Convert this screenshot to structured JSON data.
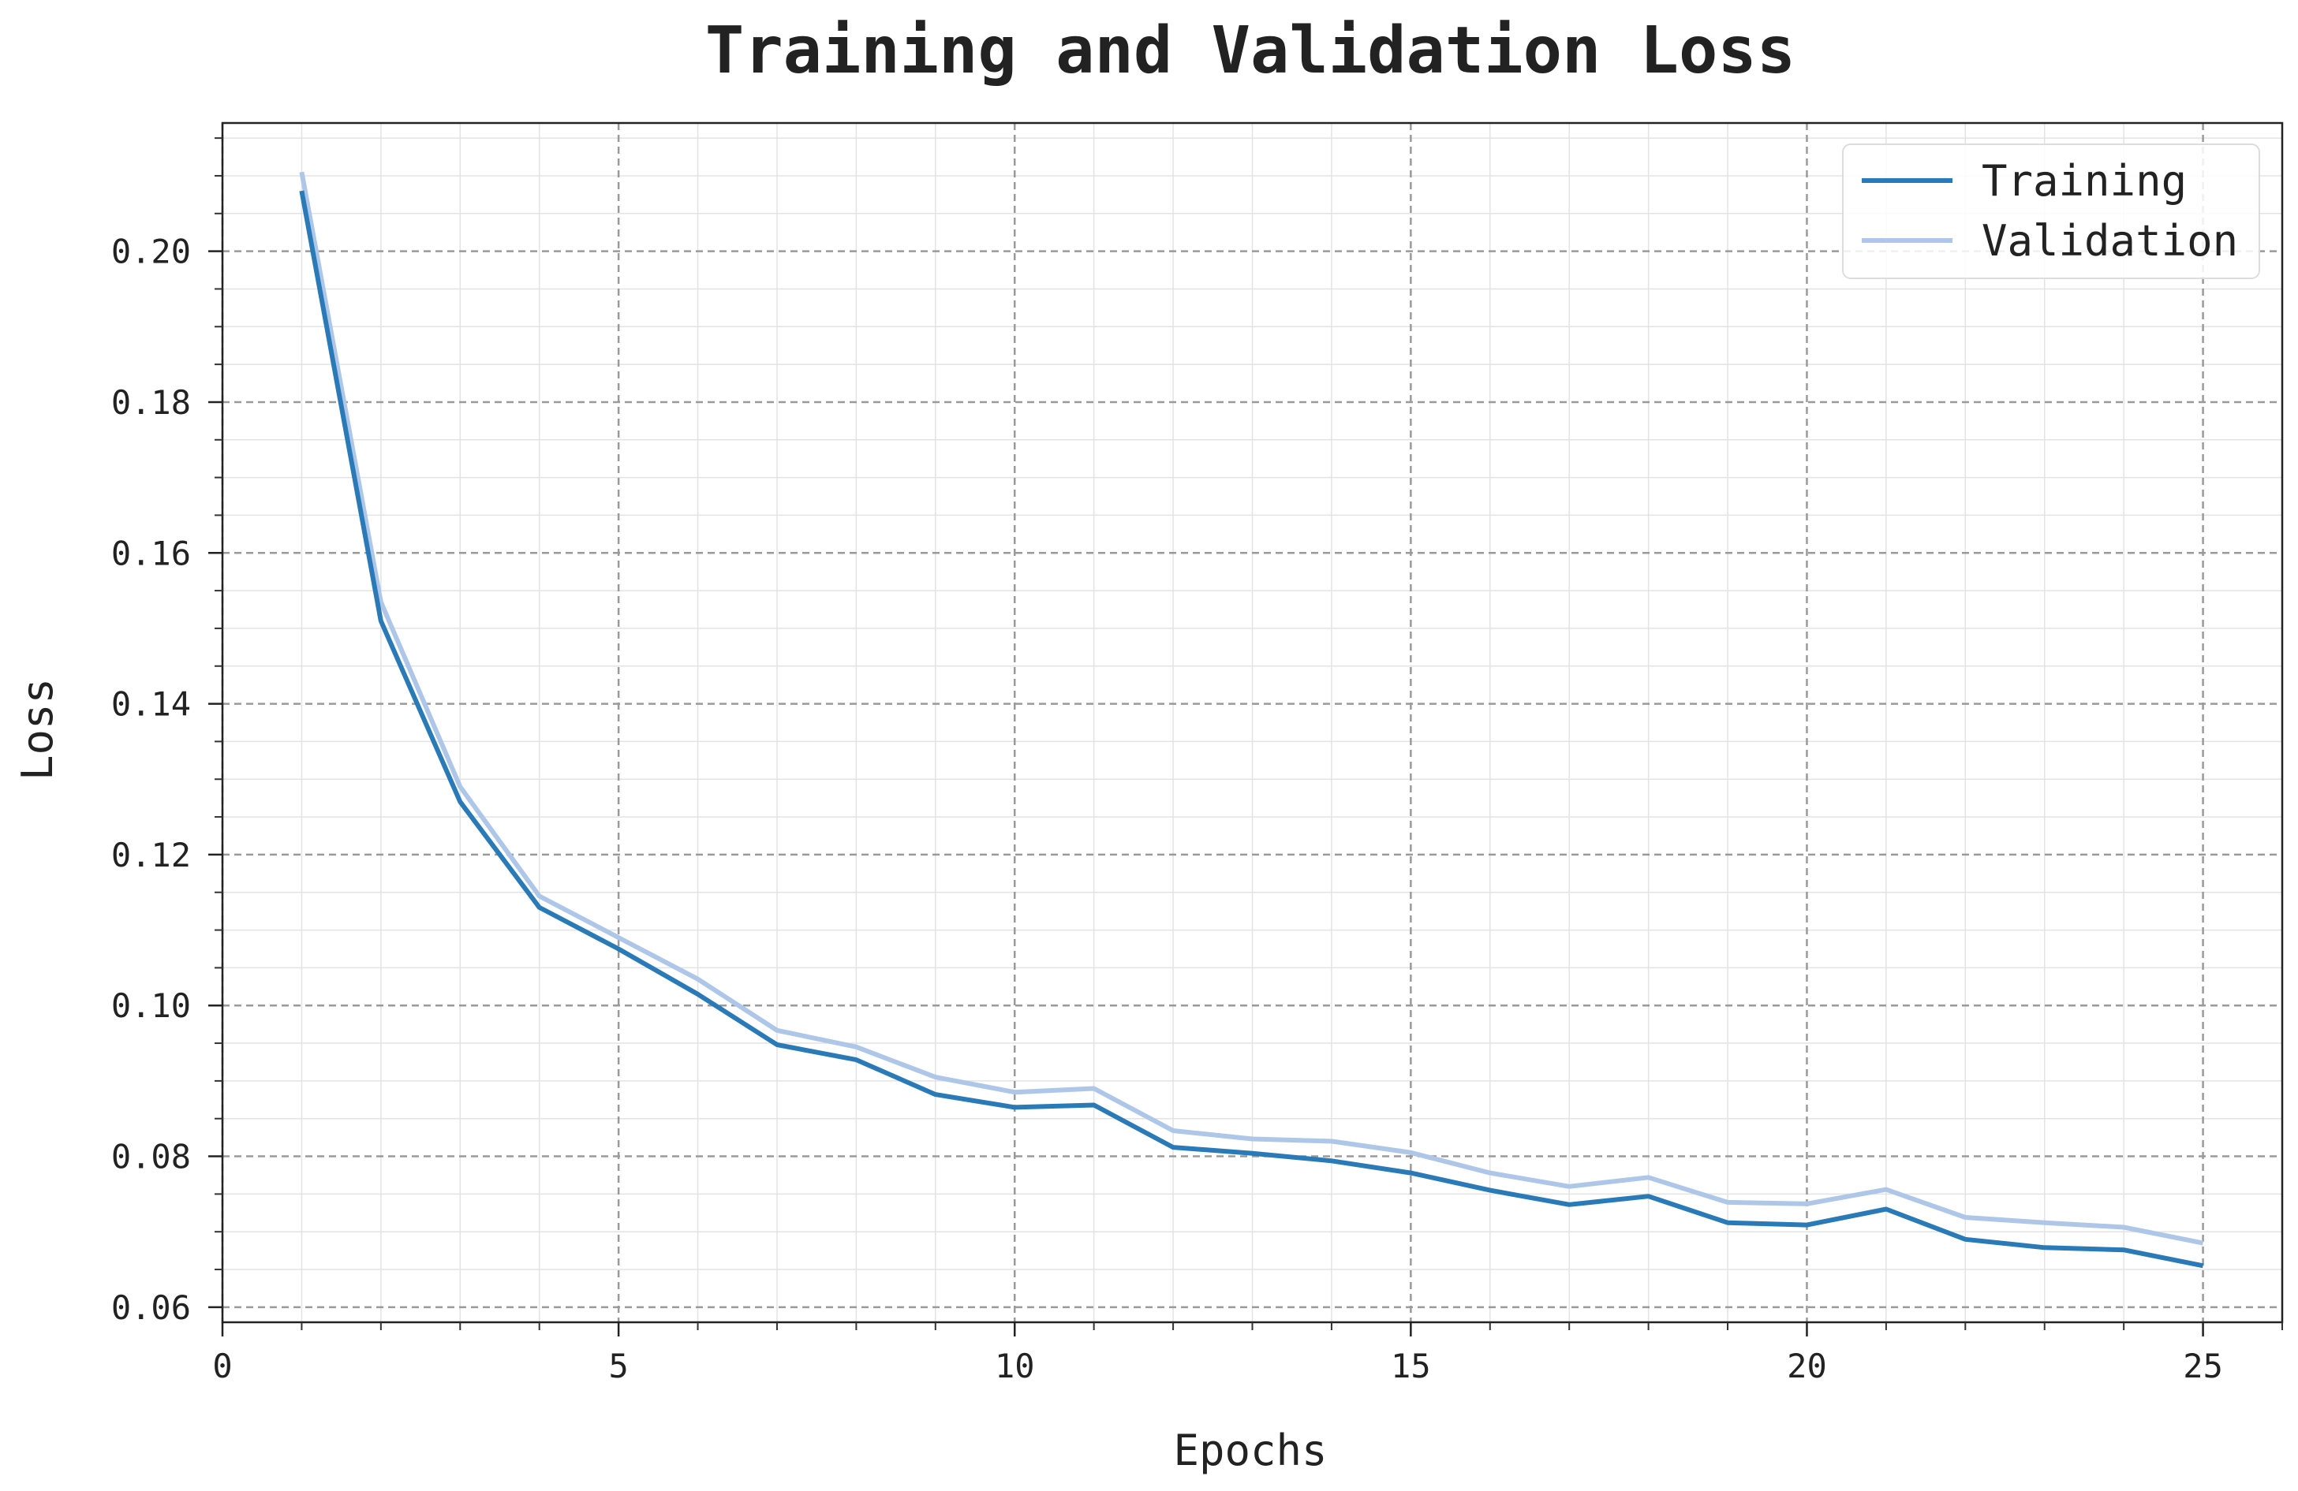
{
  "chart_data": {
    "type": "line",
    "title": "Training and Validation Loss",
    "xlabel": "Epochs",
    "ylabel": "Loss",
    "xlim": [
      0,
      26
    ],
    "ylim": [
      0.058,
      0.217
    ],
    "x_ticks": [
      0,
      5,
      10,
      15,
      20,
      25
    ],
    "y_ticks": [
      0.06,
      0.08,
      0.1,
      0.12,
      0.14,
      0.16,
      0.18,
      0.2
    ],
    "x_tick_labels": [
      "0",
      "5",
      "10",
      "15",
      "20",
      "25"
    ],
    "y_tick_labels": [
      "0.06",
      "0.08",
      "0.10",
      "0.12",
      "0.14",
      "0.16",
      "0.18",
      "0.20"
    ],
    "grid": true,
    "legend_position": "top-right",
    "x": [
      1,
      2,
      3,
      4,
      5,
      6,
      7,
      8,
      9,
      10,
      11,
      12,
      13,
      14,
      15,
      16,
      17,
      18,
      19,
      20,
      21,
      22,
      23,
      24,
      25
    ],
    "series": [
      {
        "name": "Training",
        "color": "#2a7ab8",
        "values": [
          0.208,
          0.151,
          0.127,
          0.113,
          0.1075,
          0.1015,
          0.0948,
          0.0928,
          0.0882,
          0.0865,
          0.0868,
          0.0812,
          0.0804,
          0.0794,
          0.0778,
          0.0755,
          0.0736,
          0.0747,
          0.0712,
          0.0709,
          0.073,
          0.069,
          0.0679,
          0.0676,
          0.0655
        ]
      },
      {
        "name": "Validation",
        "color": "#aec7e8",
        "values": [
          0.2105,
          0.1535,
          0.129,
          0.1145,
          0.109,
          0.1035,
          0.0967,
          0.0945,
          0.0905,
          0.0885,
          0.089,
          0.0834,
          0.0823,
          0.082,
          0.0805,
          0.0778,
          0.076,
          0.0772,
          0.0739,
          0.0737,
          0.0756,
          0.0719,
          0.0712,
          0.0706,
          0.0685
        ]
      }
    ]
  }
}
